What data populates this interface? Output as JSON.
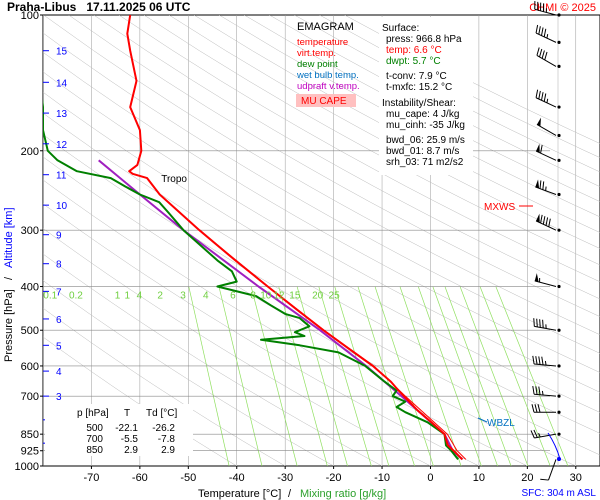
{
  "header": {
    "station_time": "Praha-Libus   17.11.2025 06 UTC",
    "copyright": "CHMI © 2025"
  },
  "footer": {
    "sfc": "SFC: 304 m ASL"
  },
  "chart_data": {
    "type": "line",
    "subtype": "emagram",
    "xlabel": "Temperature [°C]",
    "xlabel_sep": "/",
    "xlabel2": "Mixing ratio [g/kg]",
    "ylabel": "Pressure [hPa]",
    "ylabel_sep": "/",
    "ylabel2": "Altitude [km]",
    "xlim": [
      -80,
      35
    ],
    "ylim": [
      1000,
      100
    ],
    "y_scale": "log",
    "x_ticks": [
      -70,
      -60,
      -50,
      -40,
      -30,
      -20,
      -10,
      0,
      10,
      20,
      30
    ],
    "p_ticks": [
      100,
      200,
      300,
      400,
      500,
      600,
      700,
      850,
      925,
      1000
    ],
    "alt_ticks": [
      {
        "label": "1",
        "p": 890
      },
      {
        "label": "2",
        "p": 790
      },
      {
        "label": "3",
        "p": 700
      },
      {
        "label": "4",
        "p": 616
      },
      {
        "label": "5",
        "p": 540
      },
      {
        "label": "6",
        "p": 472
      },
      {
        "label": "7",
        "p": 410
      },
      {
        "label": "8",
        "p": 356
      },
      {
        "label": "9",
        "p": 307
      },
      {
        "label": "10",
        "p": 264
      },
      {
        "label": "11",
        "p": 226
      },
      {
        "label": "12",
        "p": 193
      },
      {
        "label": "13",
        "p": 165
      },
      {
        "label": "14",
        "p": 141
      },
      {
        "label": "15",
        "p": 120
      }
    ],
    "mixing_ratio_labels": [
      "0.1",
      "0.2",
      "1",
      "1",
      "4",
      "2",
      "3",
      "4",
      "6",
      "8",
      "10",
      "12",
      "15",
      "20",
      "25"
    ],
    "mixing_ratio_label_x": [
      -78.5,
      -73.2,
      -64.6,
      -62.6,
      -60.1,
      -55.8,
      -51.1,
      -46.4,
      -40.8,
      -36.6,
      -34.0,
      -31.3,
      -28.0,
      -23.3,
      -19.9
    ],
    "legend": {
      "title": "EMAGRAM",
      "items": [
        {
          "label": "temperature",
          "color": "#ff0000"
        },
        {
          "label": "virt.temp.",
          "color": "#ff0000"
        },
        {
          "label": "dew point",
          "color": "#008000"
        },
        {
          "label": "wet bulb temp.",
          "color": "#0070c0"
        },
        {
          "label": "udpraft v.temp.",
          "color": "#c000c0"
        }
      ],
      "mu_cape": "MU CAPE"
    },
    "info": {
      "surface_title": "Surface:",
      "surface": [
        {
          "text": "press: 966.8 hPa",
          "color": "#000000"
        },
        {
          "text": "temp: 6.6 °C",
          "color": "#ff0000"
        },
        {
          "text": "dwpt: 5.7 °C",
          "color": "#008000"
        }
      ],
      "conv": [
        "t-conv: 7.9 °C",
        "t-mxfc: 15.2 °C"
      ],
      "instab_title": "Instability/Shear:",
      "instab": [
        "mu_cape: 4 J/kg",
        "mu_cinh: -35 J/kg"
      ],
      "shear": [
        "bwd_06: 25.9 m/s",
        "bwd_01: 8.7 m/s",
        "srh_03: 71 m2/s2"
      ]
    },
    "annotations": {
      "tropo": {
        "text": "Tropo",
        "p": 230,
        "t": -56
      },
      "mxws": "MXWS",
      "wbzl": "WBZL"
    },
    "table": {
      "headers": [
        "p [hPa]",
        "T",
        "Td [°C]"
      ],
      "rows": [
        [
          "500",
          "-22.1",
          "-26.2"
        ],
        [
          "700",
          "-5.5",
          "-7.8"
        ],
        [
          "850",
          "2.9",
          "2.9"
        ]
      ]
    },
    "temperature": [
      [
        966.8,
        6.6
      ],
      [
        925,
        4.8
      ],
      [
        900,
        3.6
      ],
      [
        850,
        2.9
      ],
      [
        800,
        0.2
      ],
      [
        750,
        -2.8
      ],
      [
        700,
        -5.5
      ],
      [
        680,
        -6.6
      ],
      [
        650,
        -8.2
      ],
      [
        600,
        -11.9
      ],
      [
        550,
        -16.8
      ],
      [
        500,
        -22.1
      ],
      [
        450,
        -27.6
      ],
      [
        400,
        -33.6
      ],
      [
        350,
        -40.3
      ],
      [
        300,
        -47.7
      ],
      [
        250,
        -55.9
      ],
      [
        230,
        -58.5
      ],
      [
        225,
        -61.5
      ],
      [
        222,
        -62.2
      ],
      [
        215,
        -60.5
      ],
      [
        200,
        -59.7
      ],
      [
        180,
        -60.0
      ],
      [
        160,
        -62.0
      ],
      [
        140,
        -60.7
      ],
      [
        120,
        -62.0
      ],
      [
        110,
        -62.6
      ],
      [
        100,
        -62.0
      ]
    ],
    "virtual_temperature": [
      [
        966.8,
        7.3
      ],
      [
        925,
        5.5
      ],
      [
        850,
        3.5
      ],
      [
        700,
        -5.2
      ],
      [
        600,
        -11.7
      ],
      [
        500,
        -22.0
      ],
      [
        400,
        -33.5
      ],
      [
        300,
        -47.7
      ]
    ],
    "dew_point": [
      [
        966.8,
        5.7
      ],
      [
        925,
        4.3
      ],
      [
        900,
        3.2
      ],
      [
        850,
        2.9
      ],
      [
        800,
        -0.6
      ],
      [
        760,
        -5.2
      ],
      [
        740,
        -7.0
      ],
      [
        720,
        -5.2
      ],
      [
        700,
        -7.8
      ],
      [
        680,
        -7.0
      ],
      [
        650,
        -9.5
      ],
      [
        600,
        -13.5
      ],
      [
        560,
        -19.0
      ],
      [
        540,
        -27.0
      ],
      [
        525,
        -35.0
      ],
      [
        515,
        -26.0
      ],
      [
        505,
        -28.0
      ],
      [
        490,
        -25.0
      ],
      [
        480,
        -26.0
      ],
      [
        470,
        -27.0
      ],
      [
        460,
        -30.0
      ],
      [
        440,
        -33.0
      ],
      [
        420,
        -36.0
      ],
      [
        400,
        -44.0
      ],
      [
        390,
        -40.0
      ],
      [
        370,
        -41.0
      ],
      [
        350,
        -44.0
      ],
      [
        300,
        -51.0
      ],
      [
        275,
        -54.0
      ],
      [
        260,
        -56.0
      ],
      [
        250,
        -60.0
      ],
      [
        240,
        -63.0
      ],
      [
        230,
        -66.0
      ],
      [
        222,
        -73.0
      ],
      [
        210,
        -77.0
      ],
      [
        200,
        -79.0
      ],
      [
        180,
        -80.0
      ],
      [
        160,
        -80.0
      ],
      [
        130,
        -81.0
      ],
      [
        100,
        -81.0
      ]
    ],
    "updraft_virtual_temperature": [
      [
        966.8,
        6.6
      ],
      [
        925,
        4.6
      ],
      [
        850,
        2.9
      ],
      [
        700,
        -6.0
      ],
      [
        600,
        -13.3
      ],
      [
        500,
        -22.8
      ],
      [
        400,
        -35.5
      ],
      [
        300,
        -51.0
      ],
      [
        250,
        -60.0
      ],
      [
        210,
        -68.5
      ]
    ],
    "wind_barbs": [
      {
        "p": 966.8,
        "dir": 200,
        "kt": 10
      },
      {
        "p": 850,
        "dir": 260,
        "kt": 25
      },
      {
        "p": 760,
        "dir": 270,
        "kt": 30
      },
      {
        "p": 700,
        "dir": 275,
        "kt": 35
      },
      {
        "p": 600,
        "dir": 275,
        "kt": 45
      },
      {
        "p": 500,
        "dir": 280,
        "kt": 45
      },
      {
        "p": 400,
        "dir": 285,
        "kt": 55
      },
      {
        "p": 300,
        "dir": 295,
        "kt": 90
      },
      {
        "p": 250,
        "dir": 290,
        "kt": 75
      },
      {
        "p": 210,
        "dir": 295,
        "kt": 60
      },
      {
        "p": 185,
        "dir": 300,
        "kt": 50
      },
      {
        "p": 160,
        "dir": 295,
        "kt": 45
      },
      {
        "p": 130,
        "dir": 300,
        "kt": 40
      },
      {
        "p": 115,
        "dir": 295,
        "kt": 45
      },
      {
        "p": 100,
        "dir": 285,
        "kt": 45
      }
    ],
    "colors": {
      "temperature": "#ff0000",
      "dew_point": "#008000",
      "updraft": "#a020c0",
      "wet_bulb": "#0070c0",
      "isotherm": "#999999",
      "mixing_ratio": "#90e060",
      "grid": "#888888",
      "altitude": "#0000ff",
      "mu_cape_bg": "#ffc0c0"
    }
  }
}
